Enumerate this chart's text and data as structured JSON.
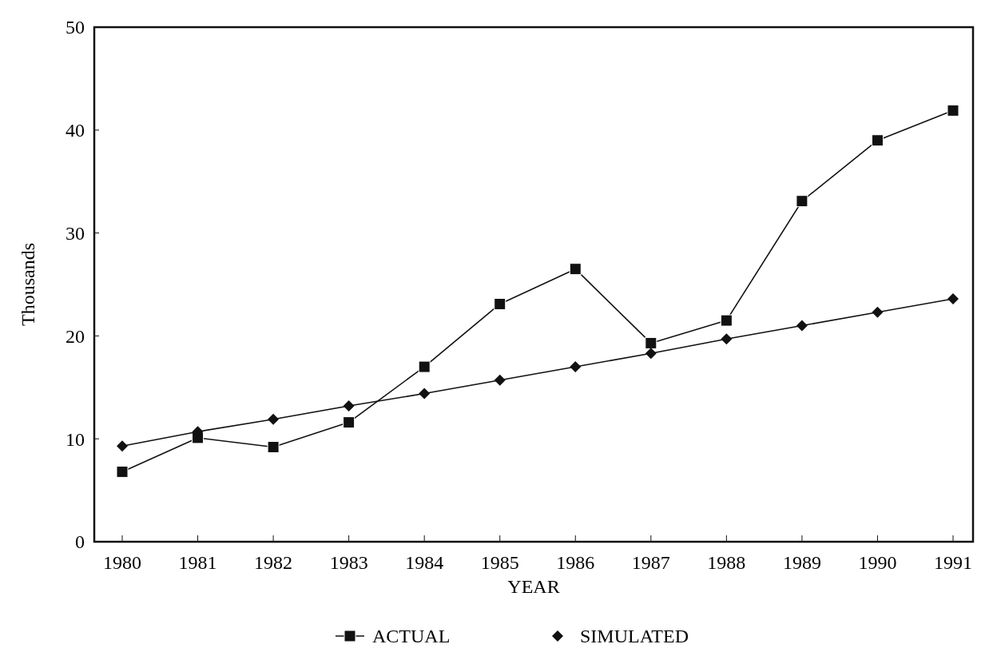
{
  "chart_data": {
    "type": "line",
    "xlabel": "YEAR",
    "ylabel": "Thousands",
    "categories": [
      "1980",
      "1981",
      "1982",
      "1983",
      "1984",
      "1985",
      "1986",
      "1987",
      "1988",
      "1989",
      "1990",
      "1991"
    ],
    "series": [
      {
        "name": "ACTUAL",
        "color": "#111111",
        "marker": "square",
        "values": [
          6.8,
          10.1,
          9.2,
          11.6,
          17.0,
          23.1,
          26.5,
          19.3,
          21.5,
          33.1,
          39.0,
          41.9
        ]
      },
      {
        "name": "SIMULATED",
        "color": "#111111",
        "marker": "diamond",
        "values": [
          9.3,
          10.7,
          11.9,
          13.2,
          14.4,
          15.7,
          17.0,
          18.3,
          19.7,
          21.0,
          22.3,
          23.6
        ]
      }
    ],
    "ylim": [
      0,
      50
    ],
    "yticks": [
      0,
      10,
      20,
      30,
      40,
      50
    ],
    "grid": false,
    "legend": "bottom",
    "line_style": "solid"
  }
}
